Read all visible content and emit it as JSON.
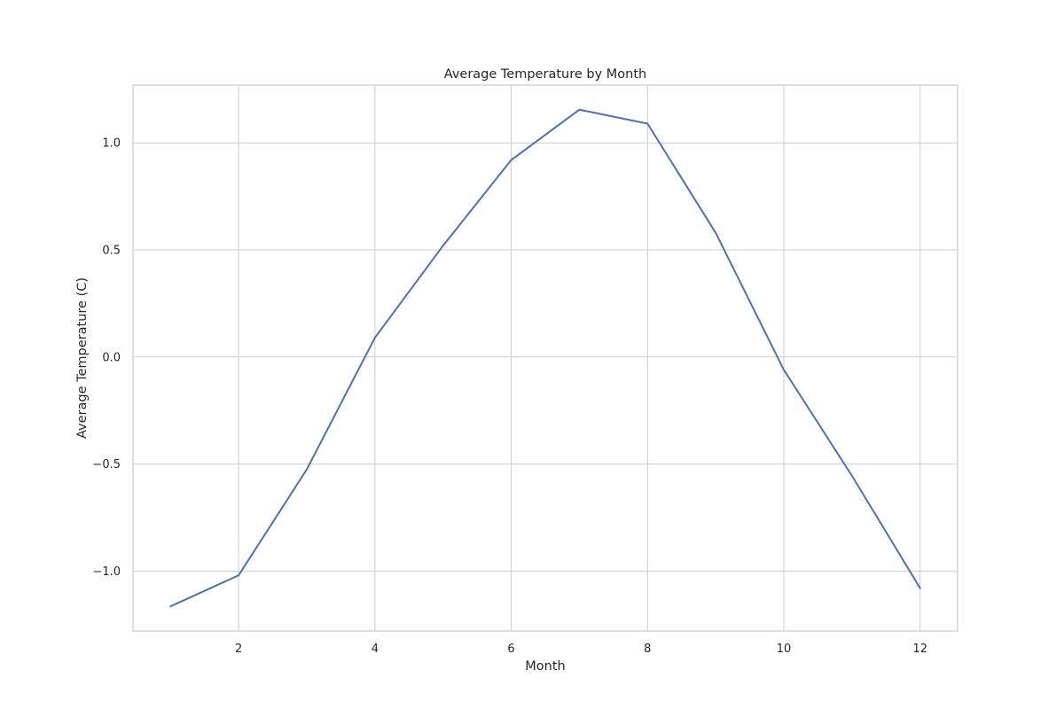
{
  "chart_data": {
    "type": "line",
    "title": "Average Temperature by Month",
    "xlabel": "Month",
    "ylabel": "Average Temperature (C)",
    "xlim": [
      0.45,
      12.55
    ],
    "ylim": [
      -1.28,
      1.27
    ],
    "xticks": [
      2,
      4,
      6,
      8,
      10,
      12
    ],
    "xtick_labels": [
      "2",
      "4",
      "6",
      "8",
      "10",
      "12"
    ],
    "yticks": [
      -1.0,
      -0.5,
      0.0,
      0.5,
      1.0
    ],
    "ytick_labels": [
      "−1.0",
      "−0.5",
      "0.0",
      "0.5",
      "1.0"
    ],
    "grid": true,
    "series": [
      {
        "color": "#4c72b0",
        "x": [
          1,
          2,
          3,
          4,
          5,
          6,
          7,
          8,
          9,
          10,
          11,
          12
        ],
        "y": [
          -1.165,
          -1.02,
          -0.525,
          0.09,
          0.52,
          0.92,
          1.155,
          1.09,
          0.58,
          -0.06,
          -0.555,
          -1.08
        ]
      }
    ]
  }
}
